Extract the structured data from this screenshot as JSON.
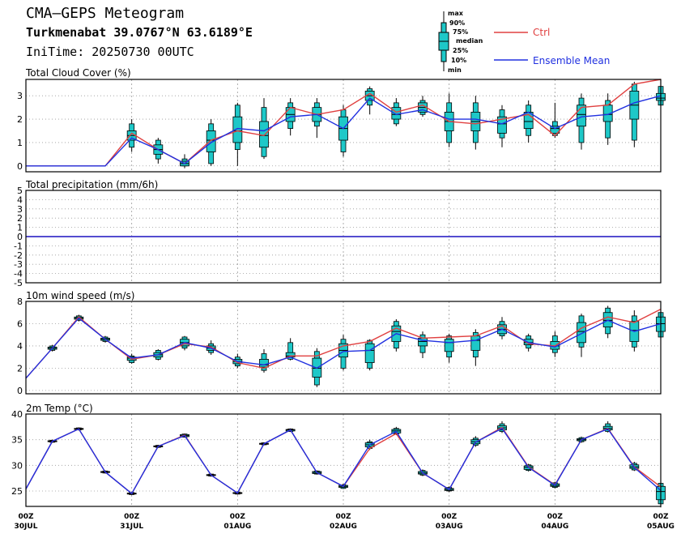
{
  "header": {
    "title": "CMA—GEPS Meteogram",
    "location": "Turkmenabat 39.0767°N 63.6189°E",
    "init_time": "IniTime: 20250730 00UTC"
  },
  "legend": {
    "box_labels": [
      "max",
      "90%",
      "75%",
      "median",
      "25%",
      "10%",
      "min"
    ],
    "ctrl": "Ctrl",
    "mean": "Ensemble Mean",
    "colors": {
      "ctrl": "#e04040",
      "mean": "#2030e0",
      "box": "#1ec8c8"
    }
  },
  "chart_data": {
    "type": "box-line meteogram",
    "x_tick_labels": [
      [
        "00Z",
        "30JUL"
      ],
      [
        "00Z",
        "31JUL"
      ],
      [
        "00Z",
        "01AUG"
      ],
      [
        "00Z",
        "02AUG"
      ],
      [
        "00Z",
        "03AUG"
      ],
      [
        "00Z",
        "04AUG"
      ],
      [
        "00Z",
        "05AUG"
      ]
    ],
    "x_range_hours": [
      0,
      144
    ],
    "step_hours": 6,
    "panels": [
      {
        "title": "Total Cloud Cover (%)",
        "yticks": [
          0,
          1,
          2,
          3
        ],
        "ylim": [
          -0.25,
          3.7
        ],
        "ctrl": [
          0,
          0,
          0,
          0,
          1.4,
          0.7,
          0.1,
          1.1,
          1.5,
          1.3,
          2.5,
          2.2,
          2.4,
          3.1,
          2.3,
          2.6,
          1.9,
          1.8,
          2.0,
          2.2,
          1.3,
          2.5,
          2.6,
          3.5,
          3.7
        ],
        "mean": [
          0,
          0,
          0,
          0,
          1.2,
          0.7,
          0.1,
          1.0,
          1.6,
          1.5,
          2.1,
          2.2,
          1.6,
          2.9,
          2.2,
          2.4,
          2.0,
          2.0,
          1.8,
          2.3,
          1.6,
          2.1,
          2.2,
          2.7,
          3.0
        ],
        "boxes": [
          null,
          null,
          null,
          null,
          [
            0.6,
            0.8,
            1.1,
            1.3,
            1.5,
            1.8,
            2.0
          ],
          [
            0.1,
            0.3,
            0.5,
            0.7,
            0.9,
            1.1,
            1.2
          ],
          [
            -0.1,
            0.0,
            0.0,
            0.1,
            0.2,
            0.3,
            0.5
          ],
          [
            0.0,
            0.1,
            0.6,
            1.1,
            1.5,
            1.8,
            2.0
          ],
          [
            0.0,
            0.7,
            1.0,
            1.5,
            2.1,
            2.6,
            2.7
          ],
          [
            0.3,
            0.4,
            0.8,
            1.3,
            1.9,
            2.5,
            2.9
          ],
          [
            1.3,
            1.6,
            1.9,
            2.2,
            2.5,
            2.7,
            2.9
          ],
          [
            1.2,
            1.7,
            1.9,
            2.2,
            2.5,
            2.7,
            2.9
          ],
          [
            0.4,
            0.6,
            1.1,
            1.6,
            2.1,
            2.4,
            2.6
          ],
          [
            2.2,
            2.6,
            2.8,
            3.0,
            3.2,
            3.3,
            3.4
          ],
          [
            1.7,
            1.8,
            2.0,
            2.2,
            2.5,
            2.7,
            2.9
          ],
          [
            2.1,
            2.2,
            2.3,
            2.5,
            2.7,
            2.8,
            3.0
          ],
          [
            0.8,
            1.0,
            1.5,
            1.9,
            2.3,
            2.7,
            3.1
          ],
          [
            0.7,
            1.0,
            1.5,
            1.9,
            2.3,
            2.7,
            3.0
          ],
          [
            0.8,
            1.2,
            1.4,
            1.8,
            2.1,
            2.4,
            2.6
          ],
          [
            1.0,
            1.3,
            1.6,
            1.9,
            2.3,
            2.6,
            2.8
          ],
          [
            1.2,
            1.3,
            1.4,
            1.6,
            1.7,
            1.9,
            2.7
          ],
          [
            0.7,
            1.0,
            1.7,
            2.2,
            2.6,
            2.9,
            3.1
          ],
          [
            0.9,
            1.2,
            1.9,
            2.2,
            2.6,
            2.8,
            3.1
          ],
          [
            0.8,
            1.1,
            2.0,
            2.6,
            3.2,
            3.5,
            3.6
          ],
          [
            2.5,
            2.6,
            2.8,
            2.9,
            3.1,
            3.4,
            3.6
          ]
        ]
      },
      {
        "title": "Total precipitation (mm/6h)",
        "yticks": [
          -5,
          -4,
          -3,
          -2,
          -1,
          0,
          1,
          2,
          3,
          4,
          5
        ],
        "ylim": [
          -5,
          5
        ],
        "ctrl": [
          0,
          0,
          0,
          0,
          0,
          0,
          0,
          0,
          0,
          0,
          0,
          0,
          0,
          0,
          0,
          0,
          0,
          0,
          0,
          0,
          0,
          0,
          0,
          0,
          0
        ],
        "mean": [
          0,
          0,
          0,
          0,
          0,
          0,
          0,
          0,
          0,
          0,
          0,
          0,
          0,
          0,
          0,
          0,
          0,
          0,
          0,
          0,
          0,
          0,
          0,
          0,
          0
        ],
        "boxes": []
      },
      {
        "title": "10m wind speed (m/s)",
        "yticks": [
          0,
          2,
          4,
          6,
          8
        ],
        "ylim": [
          -0.3,
          8
        ],
        "ctrl": [
          1.1,
          3.8,
          6.6,
          4.6,
          2.8,
          3.2,
          4.2,
          3.9,
          2.5,
          2.0,
          3.1,
          3.1,
          4.0,
          4.4,
          5.6,
          4.7,
          4.8,
          4.9,
          5.8,
          4.2,
          4.0,
          5.6,
          6.6,
          6.1,
          7.3
        ],
        "mean": [
          1.1,
          3.8,
          6.5,
          4.6,
          2.9,
          3.2,
          4.3,
          3.8,
          2.6,
          2.3,
          3.0,
          2.0,
          3.5,
          3.6,
          5.1,
          4.5,
          4.3,
          4.5,
          5.5,
          4.3,
          3.9,
          5.1,
          6.3,
          5.3,
          6.0
        ],
        "boxes": [
          null,
          [
            3.5,
            3.6,
            3.7,
            3.8,
            3.9,
            4.0,
            4.1
          ],
          [
            6.2,
            6.3,
            6.4,
            6.5,
            6.6,
            6.7,
            6.8
          ],
          [
            4.3,
            4.4,
            4.5,
            4.6,
            4.7,
            4.8,
            4.9
          ],
          [
            2.4,
            2.5,
            2.7,
            2.9,
            3.0,
            3.1,
            3.3
          ],
          [
            2.7,
            2.8,
            3.0,
            3.2,
            3.4,
            3.6,
            3.7
          ],
          [
            3.6,
            3.8,
            4.0,
            4.3,
            4.6,
            4.8,
            4.9
          ],
          [
            3.2,
            3.4,
            3.6,
            3.8,
            4.0,
            4.2,
            4.5
          ],
          [
            2.0,
            2.2,
            2.4,
            2.6,
            2.8,
            3.0,
            3.3
          ],
          [
            1.6,
            1.8,
            2.1,
            2.3,
            2.8,
            3.3,
            3.7
          ],
          [
            2.7,
            2.8,
            3.0,
            3.1,
            3.4,
            4.3,
            4.7
          ],
          [
            0.3,
            0.5,
            1.2,
            2.0,
            2.9,
            3.5,
            3.8
          ],
          [
            1.8,
            2.0,
            3.0,
            3.6,
            4.2,
            4.6,
            5.0
          ],
          [
            1.8,
            2.0,
            2.5,
            3.6,
            4.2,
            4.5,
            4.6
          ],
          [
            3.5,
            3.8,
            4.4,
            5.3,
            5.8,
            6.2,
            6.4
          ],
          [
            2.9,
            3.4,
            4.0,
            4.4,
            4.7,
            5.0,
            5.3
          ],
          [
            2.5,
            3.0,
            3.5,
            4.3,
            4.6,
            4.9,
            5.1
          ],
          [
            2.2,
            3.0,
            3.6,
            4.5,
            4.9,
            5.2,
            5.5
          ],
          [
            4.6,
            4.9,
            5.1,
            5.5,
            5.9,
            6.2,
            6.6
          ],
          [
            3.5,
            3.8,
            4.1,
            4.3,
            4.6,
            4.9,
            5.1
          ],
          [
            3.0,
            3.4,
            3.7,
            4.0,
            4.4,
            4.9,
            5.3
          ],
          [
            3.0,
            3.9,
            4.3,
            5.3,
            6.1,
            6.7,
            6.9
          ],
          [
            4.7,
            5.1,
            5.7,
            6.3,
            7.0,
            7.4,
            7.6
          ],
          [
            3.5,
            3.9,
            4.4,
            5.4,
            6.2,
            6.7,
            7.2
          ],
          [
            4.4,
            4.8,
            5.3,
            6.0,
            6.6,
            7.0,
            7.3
          ]
        ]
      },
      {
        "title": "2m Temp (°C)",
        "yticks": [
          25,
          30,
          35,
          40
        ],
        "ylim": [
          22,
          40
        ],
        "ctrl": [
          25.4,
          34.7,
          37.1,
          28.7,
          24.5,
          33.7,
          35.9,
          28.1,
          24.6,
          34.2,
          36.9,
          28.6,
          25.9,
          33.3,
          36.2,
          28.5,
          25.3,
          34.5,
          37.4,
          29.7,
          26.2,
          35.0,
          37.2,
          29.7,
          25.8
        ],
        "mean": [
          25.4,
          34.7,
          37.1,
          28.7,
          24.5,
          33.7,
          35.8,
          28.1,
          24.6,
          34.2,
          36.9,
          28.6,
          25.9,
          34.0,
          36.6,
          28.5,
          25.3,
          34.5,
          37.2,
          29.6,
          26.1,
          35.0,
          37.1,
          29.6,
          25.1
        ],
        "boxes": [
          null,
          [
            34.4,
            34.5,
            34.6,
            34.7,
            34.8,
            34.9,
            35.0
          ],
          [
            36.8,
            36.9,
            37.0,
            37.1,
            37.2,
            37.3,
            37.4
          ],
          [
            28.4,
            28.5,
            28.6,
            28.7,
            28.8,
            28.9,
            29.0
          ],
          [
            24.2,
            24.3,
            24.4,
            24.5,
            24.6,
            24.7,
            24.8
          ],
          [
            33.4,
            33.5,
            33.6,
            33.7,
            33.8,
            33.9,
            34.0
          ],
          [
            35.4,
            35.5,
            35.6,
            35.8,
            36.0,
            36.1,
            36.2
          ],
          [
            27.8,
            27.9,
            28.0,
            28.1,
            28.2,
            28.3,
            28.4
          ],
          [
            24.3,
            24.4,
            24.5,
            24.6,
            24.7,
            24.8,
            24.9
          ],
          [
            33.9,
            34.0,
            34.1,
            34.2,
            34.3,
            34.4,
            34.5
          ],
          [
            36.5,
            36.6,
            36.7,
            36.9,
            37.0,
            37.1,
            37.2
          ],
          [
            28.2,
            28.3,
            28.4,
            28.6,
            28.8,
            28.9,
            29.0
          ],
          [
            25.4,
            25.5,
            25.7,
            25.9,
            26.1,
            26.2,
            26.4
          ],
          [
            33.0,
            33.3,
            33.6,
            34.0,
            34.4,
            34.6,
            35.0
          ],
          [
            35.9,
            36.1,
            36.3,
            36.7,
            37.0,
            37.2,
            37.5
          ],
          [
            27.9,
            28.1,
            28.3,
            28.5,
            28.8,
            29.0,
            29.2
          ],
          [
            24.8,
            25.0,
            25.1,
            25.3,
            25.5,
            25.7,
            25.9
          ],
          [
            33.6,
            33.9,
            34.2,
            34.6,
            35.0,
            35.3,
            35.7
          ],
          [
            36.3,
            36.6,
            36.9,
            37.3,
            37.7,
            38.1,
            38.6
          ],
          [
            28.8,
            29.0,
            29.2,
            29.6,
            29.9,
            30.1,
            30.3
          ],
          [
            25.5,
            25.7,
            25.9,
            26.1,
            26.4,
            26.6,
            26.8
          ],
          [
            34.4,
            34.6,
            34.8,
            35.0,
            35.2,
            35.4,
            35.6
          ],
          [
            36.4,
            36.6,
            36.9,
            37.2,
            37.6,
            38.1,
            38.6
          ],
          [
            28.9,
            29.1,
            29.4,
            29.7,
            30.1,
            30.4,
            30.7
          ],
          [
            21.8,
            22.5,
            23.3,
            24.9,
            25.9,
            26.5,
            27.1
          ]
        ]
      }
    ]
  }
}
